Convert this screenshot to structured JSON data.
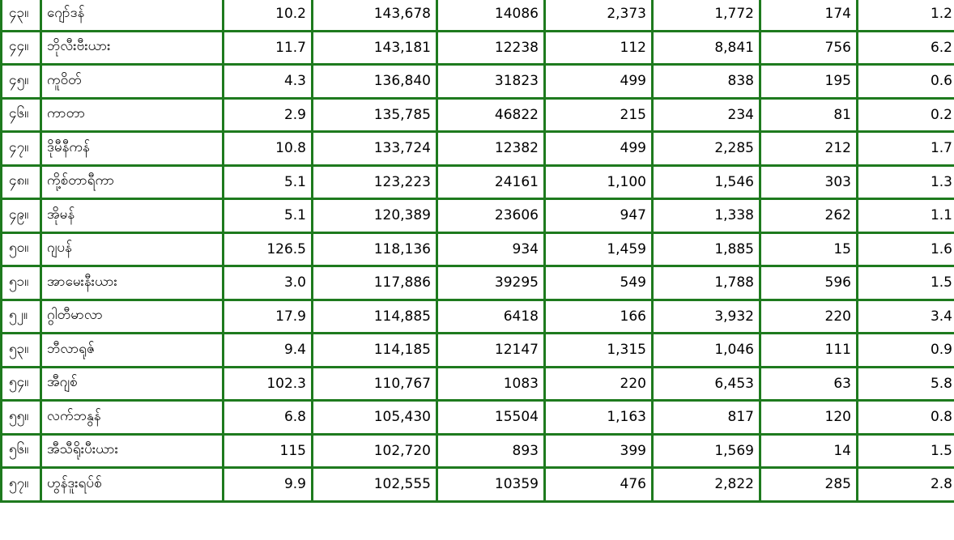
{
  "table": {
    "rows": [
      {
        "no": "၄၃။",
        "country": "ဂျော်ဒန်",
        "c1": "10.2",
        "c2": "143,678",
        "c3": "14086",
        "c4": "2,373",
        "c5": "1,772",
        "c6": "174",
        "c7": "1.2"
      },
      {
        "no": "၄၄။",
        "country": "ဘိုလီးဗီးယား",
        "c1": "11.7",
        "c2": "143,181",
        "c3": "12238",
        "c4": "112",
        "c5": "8,841",
        "c6": "756",
        "c7": "6.2"
      },
      {
        "no": "၄၅။",
        "country": "ကူဝိတ်",
        "c1": "4.3",
        "c2": "136,840",
        "c3": "31823",
        "c4": "499",
        "c5": "838",
        "c6": "195",
        "c7": "0.6"
      },
      {
        "no": "၄၆။",
        "country": "ကာတာ",
        "c1": "2.9",
        "c2": "135,785",
        "c3": "46822",
        "c4": "215",
        "c5": "234",
        "c6": "81",
        "c7": "0.2"
      },
      {
        "no": "၄၇။",
        "country": "ဒိုမီနီကန်",
        "c1": "10.8",
        "c2": "133,724",
        "c3": "12382",
        "c4": "499",
        "c5": "2,285",
        "c6": "212",
        "c7": "1.7"
      },
      {
        "no": "၄၈။",
        "country": "ကို့စ်တာရီကာ",
        "c1": "5.1",
        "c2": "123,223",
        "c3": "24161",
        "c4": "1,100",
        "c5": "1,546",
        "c6": "303",
        "c7": "1.3"
      },
      {
        "no": "၄၉။",
        "country": "အိုမန်",
        "c1": "5.1",
        "c2": "120,389",
        "c3": "23606",
        "c4": "947",
        "c5": "1,338",
        "c6": "262",
        "c7": "1.1"
      },
      {
        "no": "၅၀။",
        "country": "ဂျပန်",
        "c1": "126.5",
        "c2": "118,136",
        "c3": "934",
        "c4": "1,459",
        "c5": "1,885",
        "c6": "15",
        "c7": "1.6"
      },
      {
        "no": "၅၁။",
        "country": "အာမေးနီးယား",
        "c1": "3.0",
        "c2": "117,886",
        "c3": "39295",
        "c4": "549",
        "c5": "1,788",
        "c6": "596",
        "c7": "1.5"
      },
      {
        "no": "၅၂။",
        "country": "ဂွါတီမာလာ",
        "c1": "17.9",
        "c2": "114,885",
        "c3": "6418",
        "c4": "166",
        "c5": "3,932",
        "c6": "220",
        "c7": "3.4"
      },
      {
        "no": "၅၃။",
        "country": "ဘီလာရုဇ်",
        "c1": "9.4",
        "c2": "114,185",
        "c3": "12147",
        "c4": "1,315",
        "c5": "1,046",
        "c6": "111",
        "c7": "0.9"
      },
      {
        "no": "၅၄။",
        "country": "အီဂျစ်",
        "c1": "102.3",
        "c2": "110,767",
        "c3": "1083",
        "c4": "220",
        "c5": "6,453",
        "c6": "63",
        "c7": "5.8"
      },
      {
        "no": "၅၅။",
        "country": "လက်ဘနွန်",
        "c1": "6.8",
        "c2": "105,430",
        "c3": "15504",
        "c4": "1,163",
        "c5": "817",
        "c6": "120",
        "c7": "0.8"
      },
      {
        "no": "၅၆။",
        "country": "အီသီရိုးပီးယား",
        "c1": "115",
        "c2": "102,720",
        "c3": "893",
        "c4": "399",
        "c5": "1,569",
        "c6": "14",
        "c7": "1.5"
      },
      {
        "no": "၅၇။",
        "country": "ဟွန်ဒူးရပ်စ်",
        "c1": "9.9",
        "c2": "102,555",
        "c3": "10359",
        "c4": "476",
        "c5": "2,822",
        "c6": "285",
        "c7": "2.8"
      }
    ]
  },
  "colors": {
    "border": "#1e7a1e"
  }
}
